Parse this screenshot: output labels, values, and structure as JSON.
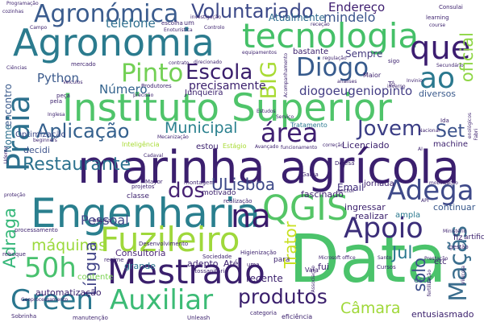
{
  "words": [
    {
      "text": "marinha agrícola",
      "color": "#3b1f6e"
    },
    {
      "text": "Instituto Superior",
      "color": "#4fc46a"
    },
    {
      "text": "Agronomia",
      "color": "#2b7b8e"
    },
    {
      "text": "Engenharia",
      "color": "#2a7f8e"
    },
    {
      "text": "Data",
      "color": "#4bc36b"
    },
    {
      "text": "tecnologia",
      "color": "#45c068"
    },
    {
      "text": "Mestrado",
      "color": "#3a1f6c"
    },
    {
      "text": "Fuzileiro",
      "color": "#9fd83b"
    },
    {
      "text": "Agronómica",
      "color": "#3b5c8e"
    },
    {
      "text": "QGIS",
      "color": "#54c566"
    },
    {
      "text": "Voluntariado",
      "color": "#3d4a89"
    },
    {
      "text": "Auxiliar",
      "color": "#3cbb75"
    },
    {
      "text": "Praia",
      "color": "#2d718e"
    },
    {
      "text": "Aplicação",
      "color": "#34608d"
    },
    {
      "text": "Diogo",
      "color": "#375b8d"
    },
    {
      "text": "Pinto",
      "color": "#73d055"
    },
    {
      "text": "Restaurante",
      "color": "#2c728e"
    },
    {
      "text": "área",
      "color": "#3f1f71"
    },
    {
      "text": "Apoio",
      "color": "#3b2d79"
    },
    {
      "text": "na",
      "color": "#3a1a6a"
    },
    {
      "text": "ao",
      "color": "#2a788e"
    },
    {
      "text": "que",
      "color": "#3c1d70"
    },
    {
      "text": "Adega",
      "color": "#3e4989"
    },
    {
      "text": "Jovem",
      "color": "#3b3e85"
    },
    {
      "text": "50h",
      "color": "#48c16e"
    },
    {
      "text": "Green",
      "color": "#2a768e"
    },
    {
      "text": "produtos",
      "color": "#3a1f6c"
    },
    {
      "text": "máquinas",
      "color": "#9bd93c"
    },
    {
      "text": "dos",
      "color": "#482475"
    },
    {
      "text": "Escola",
      "color": "#3a1f6c"
    },
    {
      "text": "BIG",
      "color": "#a8db34"
    },
    {
      "text": "oficial",
      "color": "#8ed645"
    },
    {
      "text": "Maçãs",
      "color": "#3b6e8e"
    },
    {
      "text": "Câmara",
      "color": "#9fd838"
    },
    {
      "text": "Municipal",
      "color": "#2a808e"
    },
    {
      "text": "Set",
      "color": "#3b528b"
    },
    {
      "text": "Jul",
      "color": "#2a788e"
    },
    {
      "text": "ULisboa",
      "color": "#3e4a89"
    },
    {
      "text": "Língua",
      "color": "#404387"
    },
    {
      "text": "Trator",
      "color": "#c8e020"
    },
    {
      "text": "solo",
      "color": "#3d4e8a"
    },
    {
      "text": "Adraga",
      "color": "#35b779"
    },
    {
      "text": "Número",
      "color": "#33638d"
    },
    {
      "text": "Python",
      "color": "#3b5a8c"
    },
    {
      "text": "diogoeugeniopinto",
      "color": "#433d84"
    },
    {
      "text": "precisamente",
      "color": "#3a1f6c"
    },
    {
      "text": "Pessoal",
      "color": "#404688"
    },
    {
      "text": "Consultoria",
      "color": "#4f2a7a"
    },
    {
      "text": "Endereço",
      "color": "#3d1d6f"
    },
    {
      "text": "mindelo",
      "color": "#3a548c"
    },
    {
      "text": "telefone",
      "color": "#2e6e8e"
    },
    {
      "text": "Atualmente",
      "color": "#2f6c8e"
    },
    {
      "text": "Sempre",
      "color": "#44397e"
    },
    {
      "text": "Email",
      "color": "#3f2c7a"
    },
    {
      "text": "Nome",
      "color": "#2d708e"
    },
    {
      "text": "encontro",
      "color": "#3a5a8c"
    },
    {
      "text": "recente",
      "color": "#3a1f6c"
    },
    {
      "text": "grande",
      "color": "#2c728e"
    },
    {
      "text": "adepto",
      "color": "#3b1f6e"
    },
    {
      "text": "Até",
      "color": "#3b1f6e"
    },
    {
      "text": "Licenciado",
      "color": "#3a1f6c"
    },
    {
      "text": "estou",
      "color": "#3a1f6c"
    },
    {
      "text": "decidi",
      "color": "#3d538b"
    },
    {
      "text": "Optimização",
      "color": "#3e4a89"
    },
    {
      "text": "fascinado",
      "color": "#3a1f6c"
    },
    {
      "text": "ingressar",
      "color": "#3a1f6c"
    },
    {
      "text": "jornada",
      "color": "#3a1f6c"
    },
    {
      "text": "continuar",
      "color": "#3b5a8c"
    },
    {
      "text": "realizar",
      "color": "#3a1f6c"
    },
    {
      "text": "ampla",
      "color": "#2a788e"
    },
    {
      "text": "machine",
      "color": "#3a1f6c"
    },
    {
      "text": "automatização",
      "color": "#3a1f6c"
    },
    {
      "text": "entusiasmado",
      "color": "#3a1f6c"
    },
    {
      "text": "Tratamento",
      "color": "#2a788e"
    },
    {
      "text": "bastante",
      "color": "#3a1f6c"
    },
    {
      "text": "mercado",
      "color": "#3a1f6c"
    },
    {
      "text": "Maior",
      "color": "#3a1f6c"
    },
    {
      "text": "diversos",
      "color": "#3a5a8c"
    },
    {
      "text": "Junqueira",
      "color": "#3a1f6c"
    },
    {
      "text": "Produtores",
      "color": "#3a1f6c"
    },
    {
      "text": "contente",
      "color": "#7ad151"
    },
    {
      "text": "Sociedade",
      "color": "#3a1f6c"
    },
    {
      "text": "Higienização",
      "color": "#3a1f6c"
    },
    {
      "text": "Desenvolvimento",
      "color": "#3a1f6c"
    },
    {
      "text": "básica",
      "color": "#3a1f6c"
    },
    {
      "text": "projetos",
      "color": "#3a1f6c"
    },
    {
      "text": "classe",
      "color": "#3a1f6c"
    },
    {
      "text": "Mayor",
      "color": "#3a1f6c"
    },
    {
      "text": "montagem",
      "color": "#3a1f6c"
    },
    {
      "text": "motivado",
      "color": "#3a1f6c"
    },
    {
      "text": "realização",
      "color": "#3a1f6c"
    },
    {
      "text": "fui",
      "color": "#3a1f6c"
    },
    {
      "text": "Vala",
      "color": "#3a1f6c"
    },
    {
      "text": "Cursos",
      "color": "#3a1f6c"
    },
    {
      "text": "uma",
      "color": "#3a1f6c"
    },
    {
      "text": "para",
      "color": "#3a1f6c"
    },
    {
      "text": "etc",
      "color": "#3a1f6c"
    },
    {
      "text": "fiz",
      "color": "#3a1f6c"
    },
    {
      "text": "esta",
      "color": "#3a5a8c"
    },
    {
      "text": "sector",
      "color": "#3a1f6c"
    },
    {
      "text": "Inteligência",
      "color": "#a8db34"
    },
    {
      "text": "Estágio",
      "color": "#a8db34"
    },
    {
      "text": "Prestação",
      "color": "#3a1f6c"
    },
    {
      "text": "Defesa",
      "color": "#3a1f6c"
    },
    {
      "text": "Gama",
      "color": "#3a1f6c"
    },
    {
      "text": "Tô",
      "color": "#3a1f6c"
    },
    {
      "text": "artificial",
      "color": "#3a1f6c"
    },
    {
      "text": "gestão",
      "color": "#3a1f6c"
    },
    {
      "text": "peça",
      "color": "#3a1f6c"
    },
    {
      "text": "regime",
      "color": "#3a1f6c"
    },
    {
      "text": "processamento",
      "color": "#3a1f6c"
    },
    {
      "text": "reboque",
      "color": "#3a1f6c"
    },
    {
      "text": "Sobrinha",
      "color": "#3a1f6c"
    },
    {
      "text": "manutenção",
      "color": "#3a1f6c"
    },
    {
      "text": "categoria",
      "color": "#3a1f6c"
    },
    {
      "text": "eficiência",
      "color": "#3a1f6c"
    },
    {
      "text": "fitossanitária",
      "color": "#3a1f6c"
    },
    {
      "text": "Unleash",
      "color": "#3a1f6c"
    },
    {
      "text": "Ciências",
      "color": "#3a1f6c"
    },
    {
      "text": "Programação",
      "color": "#3a1f6c"
    },
    {
      "text": "cozinhas",
      "color": "#3a1f6c"
    },
    {
      "text": "Campo",
      "color": "#3a1f6c"
    },
    {
      "text": "investigação",
      "color": "#3a1f6c"
    },
    {
      "text": "escolha",
      "color": "#3a1f6c"
    },
    {
      "text": "um",
      "color": "#3a1f6c"
    },
    {
      "text": "Controlo",
      "color": "#3a1f6c"
    },
    {
      "text": "Enoturística",
      "color": "#3a1f6c"
    },
    {
      "text": "Consulai",
      "color": "#3a1f6c"
    },
    {
      "text": "learning",
      "color": "#3a1f6c"
    },
    {
      "text": "course",
      "color": "#3a1f6c"
    },
    {
      "text": "receção",
      "color": "#3a1f6c"
    },
    {
      "text": "equipamentos",
      "color": "#3a1f6c"
    },
    {
      "text": "contrato",
      "color": "#3a1f6c"
    },
    {
      "text": "direcionado",
      "color": "#3a1f6c"
    },
    {
      "text": "regulação",
      "color": "#3a1f6c"
    },
    {
      "text": "sigo",
      "color": "#3a1f6c"
    },
    {
      "text": "Invinio",
      "color": "#3a1f6c"
    },
    {
      "text": "Secundário",
      "color": "#3a1f6c"
    },
    {
      "text": "análises",
      "color": "#3a1f6c"
    },
    {
      "text": "Acompanhamento",
      "color": "#3a1f6c"
    },
    {
      "text": "Veículos",
      "color": "#3a1f6c"
    },
    {
      "text": "Serviço",
      "color": "#3a1f6c"
    },
    {
      "text": "Inglesa",
      "color": "#3a1f6c"
    },
    {
      "text": "pela",
      "color": "#3a1f6c"
    },
    {
      "text": "Ida",
      "color": "#3a1f6c"
    },
    {
      "text": "funcionamento",
      "color": "#3a1f6c"
    },
    {
      "text": "correção",
      "color": "#3a1f6c"
    },
    {
      "text": "AI",
      "color": "#3a1f6c"
    },
    {
      "text": "Avançado",
      "color": "#3a1f6c"
    },
    {
      "text": "Mecanização",
      "color": "#3a1f6c"
    },
    {
      "text": "beginners",
      "color": "#3a1f6c"
    },
    {
      "text": "Udemy",
      "color": "#3a1f6c"
    },
    {
      "text": "proteção",
      "color": "#3a1f6c"
    },
    {
      "text": "Associação",
      "color": "#3a1f6c"
    },
    {
      "text": "Ministério",
      "color": "#3a1f6c"
    },
    {
      "text": "API",
      "color": "#3a1f6c"
    },
    {
      "text": "mobilização",
      "color": "#3a1f6c"
    },
    {
      "text": "fertilização",
      "color": "#3a1f6c"
    },
    {
      "text": "Fabri",
      "color": "#3a1f6c"
    },
    {
      "text": "Geoprocessamento",
      "color": "#3a1f6c"
    },
    {
      "text": "Microsoft office",
      "color": "#3a1f6c"
    },
    {
      "text": "Santo",
      "color": "#3a1f6c"
    },
    {
      "text": "Cadaval",
      "color": "#3a1f6c"
    },
    {
      "text": "Vinícola",
      "color": "#3a1f6c"
    },
    {
      "text": "precisão",
      "color": "#3a1f6c"
    },
    {
      "text": "Nacional",
      "color": "#3a1f6c"
    },
    {
      "text": "enológicos",
      "color": "#3a1f6c"
    },
    {
      "text": "inverno",
      "color": "#3a1f6c"
    },
    {
      "text": "Estudos",
      "color": "#3a1f6c"
    }
  ]
}
